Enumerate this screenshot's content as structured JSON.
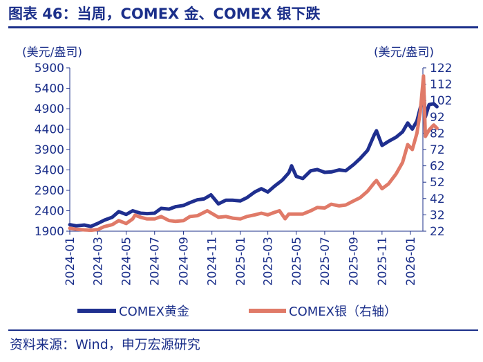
{
  "title": "图表 46：当周，COMEX 金、COMEX 银下跌",
  "source": "资料来源：Wind，申万宏源研究",
  "colors": {
    "gold": "#1f2f8f",
    "silver": "#e07a68",
    "axis": "#1b2f8a",
    "text": "#1b2f8a"
  },
  "chart_data": {
    "type": "line",
    "left_axis": {
      "unit": "(美元/盎司)",
      "ticks": [
        1900,
        2400,
        2900,
        3400,
        3900,
        4400,
        4900,
        5400,
        5900
      ],
      "ylim": [
        1900,
        5900
      ]
    },
    "right_axis": {
      "unit": "(美元/盎司)",
      "ticks": [
        22,
        32,
        42,
        52,
        62,
        72,
        82,
        92,
        102,
        112,
        122
      ],
      "ylim": [
        22,
        122
      ]
    },
    "x_ticks": [
      "2024-01",
      "2024-03",
      "2024-05",
      "2024-07",
      "2024-09",
      "2024-11",
      "2025-01",
      "2025-03",
      "2025-05",
      "2025-07",
      "2025-09",
      "2025-11",
      "2026-01"
    ],
    "grid": false,
    "legend_position": "bottom",
    "series": [
      {
        "name": "COMEX黄金",
        "axis": "left",
        "points": [
          [
            "2024-01-01",
            2060
          ],
          [
            "2024-01-15",
            2030
          ],
          [
            "2024-02-01",
            2050
          ],
          [
            "2024-02-15",
            2015
          ],
          [
            "2024-03-01",
            2090
          ],
          [
            "2024-03-15",
            2170
          ],
          [
            "2024-04-01",
            2240
          ],
          [
            "2024-04-15",
            2380
          ],
          [
            "2024-05-01",
            2310
          ],
          [
            "2024-05-15",
            2400
          ],
          [
            "2024-06-01",
            2340
          ],
          [
            "2024-06-15",
            2330
          ],
          [
            "2024-07-01",
            2340
          ],
          [
            "2024-07-15",
            2460
          ],
          [
            "2024-08-01",
            2440
          ],
          [
            "2024-08-15",
            2500
          ],
          [
            "2024-09-01",
            2530
          ],
          [
            "2024-09-15",
            2600
          ],
          [
            "2024-10-01",
            2670
          ],
          [
            "2024-10-15",
            2690
          ],
          [
            "2024-10-30",
            2790
          ],
          [
            "2024-11-15",
            2570
          ],
          [
            "2024-12-01",
            2660
          ],
          [
            "2024-12-15",
            2660
          ],
          [
            "2025-01-01",
            2640
          ],
          [
            "2025-01-15",
            2720
          ],
          [
            "2025-02-01",
            2860
          ],
          [
            "2025-02-15",
            2940
          ],
          [
            "2025-03-01",
            2860
          ],
          [
            "2025-03-15",
            3000
          ],
          [
            "2025-04-01",
            3150
          ],
          [
            "2025-04-15",
            3330
          ],
          [
            "2025-04-21",
            3500
          ],
          [
            "2025-05-01",
            3240
          ],
          [
            "2025-05-15",
            3190
          ],
          [
            "2025-06-01",
            3380
          ],
          [
            "2025-06-15",
            3410
          ],
          [
            "2025-07-01",
            3340
          ],
          [
            "2025-07-15",
            3350
          ],
          [
            "2025-08-01",
            3400
          ],
          [
            "2025-08-15",
            3380
          ],
          [
            "2025-09-01",
            3530
          ],
          [
            "2025-09-15",
            3680
          ],
          [
            "2025-10-01",
            3880
          ],
          [
            "2025-10-15",
            4250
          ],
          [
            "2025-10-20",
            4360
          ],
          [
            "2025-11-01",
            4000
          ],
          [
            "2025-11-15",
            4100
          ],
          [
            "2025-12-01",
            4200
          ],
          [
            "2025-12-15",
            4330
          ],
          [
            "2025-12-26",
            4550
          ],
          [
            "2026-01-05",
            4400
          ],
          [
            "2026-01-15",
            4600
          ],
          [
            "2026-01-25",
            5050
          ],
          [
            "2026-01-29",
            5400
          ],
          [
            "2026-02-02",
            4700
          ],
          [
            "2026-02-10",
            5000
          ],
          [
            "2026-02-20",
            5020
          ],
          [
            "2026-02-27",
            4950
          ]
        ]
      },
      {
        "name": "COMEX银（右轴）",
        "axis": "right",
        "points": [
          [
            "2024-01-01",
            23.8
          ],
          [
            "2024-01-15",
            23.2
          ],
          [
            "2024-02-01",
            22.8
          ],
          [
            "2024-02-15",
            22.6
          ],
          [
            "2024-03-01",
            23.0
          ],
          [
            "2024-03-15",
            24.8
          ],
          [
            "2024-04-01",
            26.0
          ],
          [
            "2024-04-15",
            28.5
          ],
          [
            "2024-05-01",
            26.7
          ],
          [
            "2024-05-15",
            29.5
          ],
          [
            "2024-05-20",
            31.8
          ],
          [
            "2024-06-01",
            30.5
          ],
          [
            "2024-06-15",
            29.5
          ],
          [
            "2024-07-01",
            29.5
          ],
          [
            "2024-07-15",
            31.0
          ],
          [
            "2024-08-01",
            28.5
          ],
          [
            "2024-08-15",
            28.0
          ],
          [
            "2024-09-01",
            28.5
          ],
          [
            "2024-09-15",
            31.0
          ],
          [
            "2024-10-01",
            31.5
          ],
          [
            "2024-10-22",
            34.5
          ],
          [
            "2024-11-15",
            30.5
          ],
          [
            "2024-12-01",
            31.0
          ],
          [
            "2024-12-15",
            30.0
          ],
          [
            "2025-01-01",
            29.5
          ],
          [
            "2025-01-15",
            31.0
          ],
          [
            "2025-02-01",
            32.0
          ],
          [
            "2025-02-15",
            33.0
          ],
          [
            "2025-03-01",
            32.0
          ],
          [
            "2025-03-15",
            33.5
          ],
          [
            "2025-03-26",
            34.5
          ],
          [
            "2025-04-07",
            29.6
          ],
          [
            "2025-04-15",
            32.5
          ],
          [
            "2025-05-01",
            32.5
          ],
          [
            "2025-05-15",
            32.5
          ],
          [
            "2025-06-01",
            34.5
          ],
          [
            "2025-06-15",
            36.5
          ],
          [
            "2025-07-01",
            36.2
          ],
          [
            "2025-07-15",
            38.5
          ],
          [
            "2025-08-01",
            37.5
          ],
          [
            "2025-08-15",
            38.0
          ],
          [
            "2025-09-01",
            40.5
          ],
          [
            "2025-09-15",
            42.5
          ],
          [
            "2025-10-01",
            46.5
          ],
          [
            "2025-10-15",
            51.5
          ],
          [
            "2025-10-20",
            53.0
          ],
          [
            "2025-11-01",
            48.0
          ],
          [
            "2025-11-15",
            51.0
          ],
          [
            "2025-12-01",
            57.0
          ],
          [
            "2025-12-15",
            64.0
          ],
          [
            "2025-12-26",
            75.0
          ],
          [
            "2026-01-05",
            72.0
          ],
          [
            "2026-01-15",
            82.0
          ],
          [
            "2026-01-22",
            95.0
          ],
          [
            "2026-01-29",
            117.0
          ],
          [
            "2026-02-02",
            80.0
          ],
          [
            "2026-02-10",
            84.0
          ],
          [
            "2026-02-20",
            87.0
          ],
          [
            "2026-02-27",
            85.0
          ]
        ]
      }
    ]
  }
}
